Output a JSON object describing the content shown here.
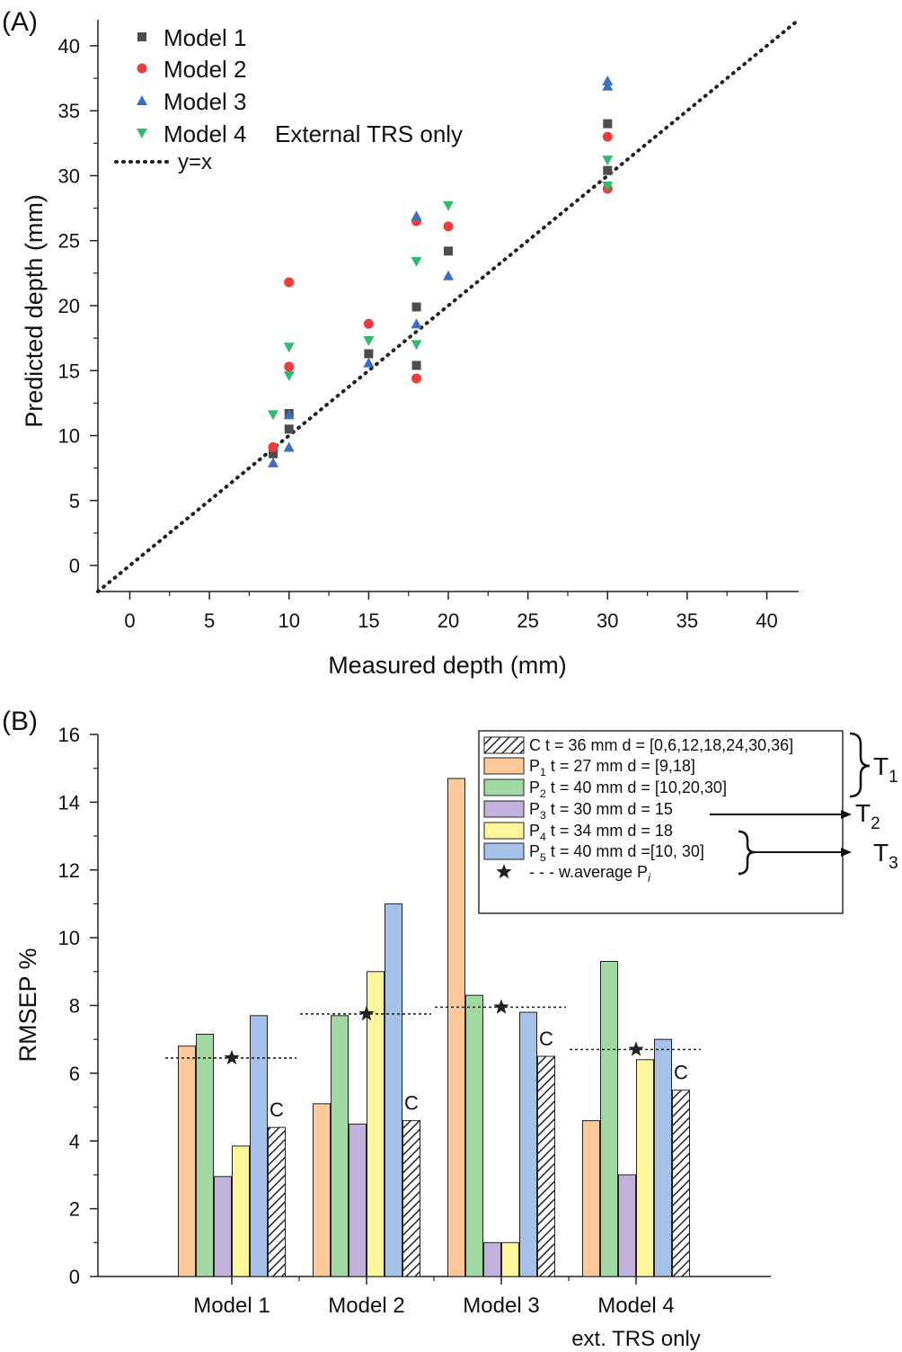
{
  "colors": {
    "model1": "#4d4d4d",
    "model2": "#ee3b3b",
    "model3": "#3a6fc4",
    "model4": "#2ebd6b",
    "C": "#ffffff",
    "P1": "#fdc99a",
    "P2": "#a2d9a2",
    "P3": "#c3b1dd",
    "P4": "#fdf69a",
    "P5": "#a7c2ea",
    "axis": "#222222"
  },
  "chart_data": [
    {
      "panel_label": "(A)",
      "type": "scatter",
      "xlabel": "Measured depth (mm)",
      "ylabel": "Predicted depth (mm)",
      "xlim": [
        -2,
        42
      ],
      "ylim": [
        -2,
        42
      ],
      "xticks": [
        0,
        5,
        10,
        15,
        20,
        25,
        30,
        35,
        40
      ],
      "yticks": [
        0,
        5,
        10,
        15,
        20,
        25,
        30,
        35,
        40
      ],
      "xtick_labels": [
        "0",
        "5",
        "10",
        "15",
        "20",
        "25",
        "30",
        "35",
        "40"
      ],
      "ytick_labels": [
        "0",
        "5",
        "10",
        "15",
        "20",
        "25",
        "30",
        "35",
        "40"
      ],
      "legend_note": "External TRS only",
      "series": [
        {
          "name": "Model 1",
          "marker": "square",
          "x": [
            9,
            10,
            10,
            15,
            18,
            18,
            20,
            30,
            30
          ],
          "y": [
            8.6,
            10.5,
            11.7,
            16.3,
            15.4,
            19.9,
            24.2,
            30.4,
            34.0
          ]
        },
        {
          "name": "Model 2",
          "marker": "circle",
          "x": [
            9,
            10,
            10,
            15,
            18,
            18,
            20,
            30,
            30
          ],
          "y": [
            9.1,
            15.3,
            21.8,
            18.6,
            14.4,
            26.5,
            26.1,
            29.0,
            33.0
          ]
        },
        {
          "name": "Model 3",
          "marker": "triangle-up",
          "x": [
            9,
            10,
            10,
            15,
            18,
            18,
            20,
            30,
            30
          ],
          "y": [
            7.9,
            9.1,
            11.6,
            15.6,
            18.6,
            26.9,
            22.3,
            36.9,
            37.3
          ]
        },
        {
          "name": "Model 4",
          "marker": "triangle-down",
          "x": [
            9,
            10,
            10,
            15,
            18,
            18,
            20,
            30,
            30
          ],
          "y": [
            11.6,
            14.6,
            16.8,
            17.3,
            17.0,
            23.4,
            27.7,
            29.2,
            31.2
          ]
        },
        {
          "name": "y=x",
          "type": "line",
          "style": "dotted",
          "x": [
            -2,
            42
          ],
          "y": [
            -2,
            42
          ]
        }
      ]
    },
    {
      "panel_label": "(B)",
      "type": "bar",
      "ylabel": "RMSEP %",
      "ylim": [
        0,
        16
      ],
      "yticks": [
        0,
        2,
        4,
        6,
        8,
        10,
        12,
        14,
        16
      ],
      "ytick_labels": [
        "0",
        "2",
        "4",
        "6",
        "8",
        "10",
        "12",
        "14",
        "16"
      ],
      "categories": [
        "Model 1",
        "Model 2",
        "Model 3",
        "Model 4"
      ],
      "category_sublabels": [
        "",
        "",
        "",
        "ext. TRS only"
      ],
      "bar_order": [
        "P1",
        "P2",
        "P3",
        "P4",
        "P5",
        "C"
      ],
      "series": [
        {
          "key": "P1",
          "values": [
            6.8,
            5.1,
            14.7,
            4.6
          ]
        },
        {
          "key": "P2",
          "values": [
            7.15,
            7.7,
            8.3,
            9.3
          ]
        },
        {
          "key": "P3",
          "values": [
            2.95,
            4.5,
            1.0,
            3.0
          ]
        },
        {
          "key": "P4",
          "values": [
            3.85,
            9.0,
            1.0,
            6.4
          ]
        },
        {
          "key": "P5",
          "values": [
            7.7,
            11.0,
            7.8,
            7.0
          ]
        },
        {
          "key": "C",
          "values": [
            4.4,
            4.6,
            6.5,
            5.5
          ],
          "pattern": "hatch"
        }
      ],
      "weighted_average": [
        6.45,
        7.75,
        7.95,
        6.7
      ],
      "c_bar_label": "C",
      "legend": [
        {
          "key": "C",
          "prefix": "C",
          "sub": "",
          "text": "t = 36 mm d = [0,6,12,18,24,30,36]"
        },
        {
          "key": "P1",
          "prefix": "P",
          "sub": "1",
          "text": "t = 27 mm d = [9,18]"
        },
        {
          "key": "P2",
          "prefix": "P",
          "sub": "2",
          "text": "t = 40 mm d = [10,20,30]"
        },
        {
          "key": "P3",
          "prefix": "P",
          "sub": "3",
          "text": "t = 30 mm d = 15"
        },
        {
          "key": "P4",
          "prefix": "P",
          "sub": "4",
          "text": "t = 34 mm d = 18"
        },
        {
          "key": "P5",
          "prefix": "P",
          "sub": "5",
          "text": "t = 40 mm d =[10, 30]"
        }
      ],
      "legend_avg": {
        "text": "- - - w.average P",
        "sub": "i"
      },
      "groups": [
        {
          "prefix": "T",
          "sub": "1"
        },
        {
          "prefix": "T",
          "sub": "2"
        },
        {
          "prefix": "T",
          "sub": "3"
        }
      ]
    }
  ]
}
